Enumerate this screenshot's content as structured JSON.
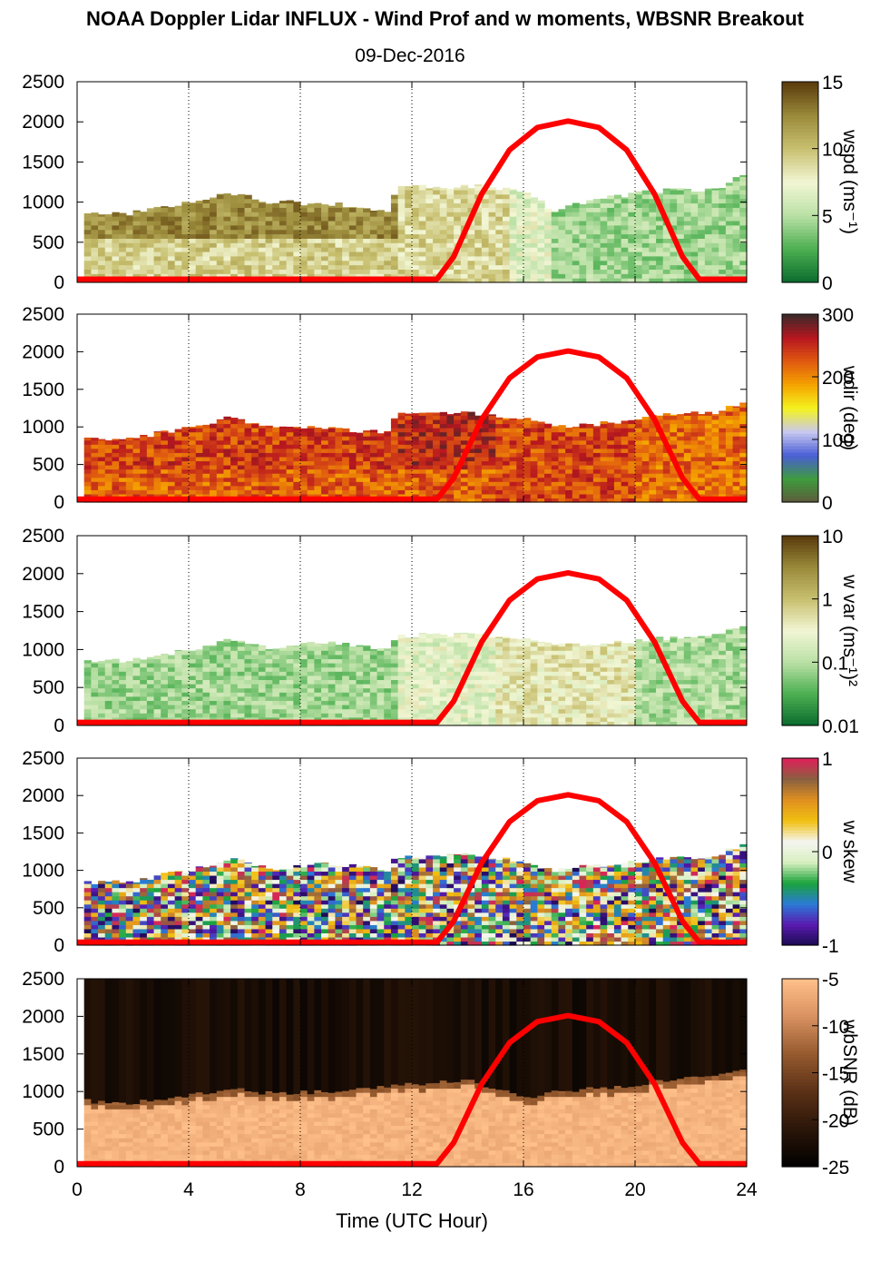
{
  "title": "NOAA Doppler Lidar INFLUX - Wind Prof and w moments, WBSNR Breakout",
  "subtitle": "09-Dec-2016",
  "chart_data": {
    "type": "heatmap",
    "xlabel": "Time (UTC Hour)",
    "xlim": [
      0,
      24
    ],
    "xticks": [
      0,
      4,
      8,
      12,
      16,
      20,
      24
    ],
    "ylim": [
      0,
      2500
    ],
    "yticks": [
      0,
      500,
      1000,
      1500,
      2000,
      2500
    ],
    "grid_x": "dotted vertical lines every 4 hours",
    "overlay_curve": {
      "color": "#ff0000",
      "points": [
        [
          0,
          40
        ],
        [
          12.9,
          40
        ],
        [
          13.5,
          320
        ],
        [
          14.5,
          1100
        ],
        [
          15.5,
          1650
        ],
        [
          16.5,
          1930
        ],
        [
          17.6,
          2010
        ],
        [
          18.7,
          1930
        ],
        [
          19.7,
          1650
        ],
        [
          20.7,
          1100
        ],
        [
          21.7,
          320
        ],
        [
          22.3,
          40
        ],
        [
          24,
          40
        ]
      ]
    },
    "panels": [
      {
        "colorbar_label": "wspd (ms⁻¹)",
        "colorbar_ticks": [
          "0",
          "5",
          "10",
          "15"
        ],
        "colormap": [
          "#0a6b2e",
          "#4caf50",
          "#b9e0a5",
          "#f2f6d4",
          "#c8c070",
          "#9a8a3a",
          "#5a3a0c"
        ],
        "top_height_profile": [
          [
            0.25,
            850
          ],
          [
            2,
            860
          ],
          [
            4,
            990
          ],
          [
            5.5,
            1120
          ],
          [
            7,
            1000
          ],
          [
            9,
            980
          ],
          [
            11.3,
            900
          ],
          [
            11.4,
            1180
          ],
          [
            14,
            1200
          ],
          [
            16,
            1150
          ],
          [
            17,
            900
          ],
          [
            19,
            1050
          ],
          [
            21,
            1150
          ],
          [
            23,
            1150
          ],
          [
            23.8,
            1320
          ]
        ],
        "regions": [
          {
            "t0": 0.25,
            "t1": 11.3,
            "z0": 0,
            "z1": 500,
            "level": 0.62
          },
          {
            "t0": 0.25,
            "t1": 11.3,
            "z0": 500,
            "z1": 2500,
            "level": 0.82
          },
          {
            "t0": 11.3,
            "t1": 15.5,
            "z0": 0,
            "z1": 2500,
            "level": 0.6
          },
          {
            "t0": 15.5,
            "t1": 17,
            "z0": 0,
            "z1": 2500,
            "level": 0.45
          },
          {
            "t0": 17,
            "t1": 23.8,
            "z0": 0,
            "z1": 2500,
            "level": 0.3
          }
        ]
      },
      {
        "colorbar_label": "wdir (deg)",
        "colorbar_ticks": [
          "0",
          "100",
          "200",
          "300"
        ],
        "colormap": [
          "#5e5a3c",
          "#3e9b3e",
          "#4a5ed6",
          "#c8c8f0",
          "#f4f31e",
          "#f5a300",
          "#e05a10",
          "#b7161f",
          "#3a2a2a"
        ],
        "top_height_profile": [
          [
            0.25,
            840
          ],
          [
            2,
            850
          ],
          [
            4,
            990
          ],
          [
            5.5,
            1120
          ],
          [
            7,
            1000
          ],
          [
            9,
            980
          ],
          [
            11.3,
            920
          ],
          [
            11.4,
            1180
          ],
          [
            14,
            1180
          ],
          [
            16,
            1120
          ],
          [
            17,
            1000
          ],
          [
            19,
            1050
          ],
          [
            21,
            1150
          ],
          [
            23,
            1200
          ],
          [
            23.8,
            1320
          ]
        ],
        "regions": [
          {
            "t0": 0.25,
            "t1": 11.3,
            "z0": 0,
            "z1": 400,
            "level": 0.74
          },
          {
            "t0": 0.25,
            "t1": 11.3,
            "z0": 400,
            "z1": 2500,
            "level": 0.79
          },
          {
            "t0": 11.3,
            "t1": 15,
            "z0": 0,
            "z1": 400,
            "level": 0.74
          },
          {
            "t0": 11.3,
            "t1": 15,
            "z0": 400,
            "z1": 2500,
            "level": 0.85
          },
          {
            "t0": 15,
            "t1": 20,
            "z0": 0,
            "z1": 2500,
            "level": 0.78
          },
          {
            "t0": 20,
            "t1": 23.8,
            "z0": 0,
            "z1": 2500,
            "level": 0.72
          }
        ]
      },
      {
        "colorbar_label": "w var (ms⁻¹)²",
        "colorbar_ticks": [
          "0.01",
          "0.1",
          "1",
          "10"
        ],
        "colormap": [
          "#0a6b2e",
          "#4caf50",
          "#b9e0a5",
          "#f2f6d4",
          "#c8c070",
          "#9a8a3a",
          "#5a3a0c"
        ],
        "top_height_profile": [
          [
            0.25,
            840
          ],
          [
            2,
            860
          ],
          [
            4,
            990
          ],
          [
            5.5,
            1150
          ],
          [
            7,
            1020
          ],
          [
            9,
            1100
          ],
          [
            11.3,
            1000
          ],
          [
            11.4,
            1180
          ],
          [
            14,
            1200
          ],
          [
            16,
            1150
          ],
          [
            17,
            1050
          ],
          [
            19,
            1080
          ],
          [
            21,
            1150
          ],
          [
            23,
            1200
          ],
          [
            23.8,
            1330
          ]
        ],
        "regions": [
          {
            "t0": 0.25,
            "t1": 11.3,
            "z0": 0,
            "z1": 2500,
            "level": 0.3
          },
          {
            "t0": 11.3,
            "t1": 15,
            "z0": 0,
            "z1": 2500,
            "level": 0.45
          },
          {
            "t0": 15,
            "t1": 20,
            "z0": 0,
            "z1": 2500,
            "level": 0.55
          },
          {
            "t0": 20,
            "t1": 23.8,
            "z0": 0,
            "z1": 2500,
            "level": 0.32
          }
        ]
      },
      {
        "colorbar_label": "w skew",
        "colorbar_ticks": [
          "-1",
          "0",
          "1"
        ],
        "colormap": [
          "#1a0a50",
          "#5a1ab0",
          "#2a7bd6",
          "#1aa33a",
          "#d8f0c0",
          "#f5f5f0",
          "#f0c010",
          "#e09020",
          "#8a6040",
          "#e0205a"
        ],
        "top_height_profile": [
          [
            0.25,
            840
          ],
          [
            2,
            860
          ],
          [
            4,
            1000
          ],
          [
            5.5,
            1150
          ],
          [
            7,
            1020
          ],
          [
            9,
            1100
          ],
          [
            11.3,
            1000
          ],
          [
            11.4,
            1180
          ],
          [
            14,
            1200
          ],
          [
            16,
            1120
          ],
          [
            17,
            1000
          ],
          [
            19,
            1080
          ],
          [
            21,
            1150
          ],
          [
            23,
            1200
          ],
          [
            23.8,
            1330
          ]
        ],
        "regions": [
          {
            "t0": 0.25,
            "t1": 23.8,
            "z0": 0,
            "z1": 2500,
            "level": 0.5
          }
        ]
      },
      {
        "colorbar_label": "wbSNR (dB)",
        "colorbar_ticks": [
          "-25",
          "-20",
          "-15",
          "-10",
          "-5"
        ],
        "colormap": [
          "#000000",
          "#2a1508",
          "#5a3016",
          "#955a2e",
          "#d89060",
          "#ffc08a"
        ],
        "top_height_profile": [
          [
            0.25,
            880
          ],
          [
            2,
            850
          ],
          [
            4,
            940
          ],
          [
            5.5,
            1050
          ],
          [
            7,
            980
          ],
          [
            9,
            1000
          ],
          [
            11.3,
            1080
          ],
          [
            13,
            1120
          ],
          [
            14,
            1150
          ],
          [
            15,
            1050
          ],
          [
            16,
            900
          ],
          [
            17,
            1000
          ],
          [
            19,
            1050
          ],
          [
            21,
            1150
          ],
          [
            23,
            1200
          ],
          [
            23.8,
            1320
          ]
        ],
        "regions": [
          {
            "t0": 0.25,
            "t1": 23.8,
            "z0": 0,
            "z1": 2500,
            "level": 0.95
          }
        ]
      }
    ]
  }
}
